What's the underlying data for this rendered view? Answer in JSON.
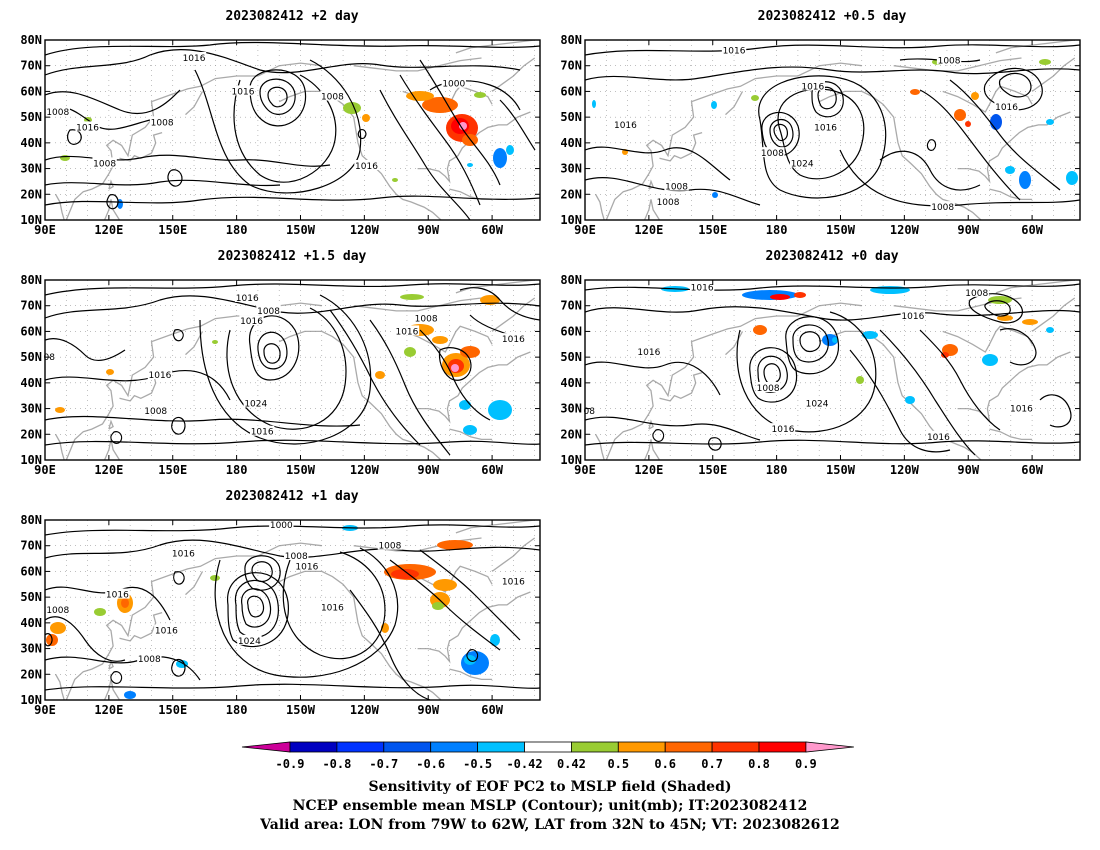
{
  "panels": [
    {
      "title": "2023082412 +2 day"
    },
    {
      "title": "2023082412 +0.5 day"
    },
    {
      "title": "2023082412 +1.5 day"
    },
    {
      "title": "2023082412 +0 day"
    },
    {
      "title": "2023082412 +1 day"
    }
  ],
  "lat_labels": [
    "80N",
    "70N",
    "60N",
    "50N",
    "40N",
    "30N",
    "20N",
    "10N"
  ],
  "lon_labels": [
    "90E",
    "120E",
    "150E",
    "180",
    "150W",
    "120W",
    "90W",
    "60W"
  ],
  "contour_labels": [
    [
      {
        "text": "1016",
        "lon": 160,
        "lat": 73
      },
      {
        "text": "1016",
        "lon": 183,
        "lat": 60
      },
      {
        "text": "1008",
        "lon": 225,
        "lat": 58
      },
      {
        "text": "1000",
        "lon": 282,
        "lat": 63
      },
      {
        "text": "1008",
        "lon": 96,
        "lat": 52
      },
      {
        "text": "1008",
        "lon": 145,
        "lat": 48
      },
      {
        "text": "1016",
        "lon": 110,
        "lat": 46
      },
      {
        "text": "1008",
        "lon": 118,
        "lat": 32
      },
      {
        "text": "1016",
        "lon": 241,
        "lat": 31
      }
    ],
    [
      {
        "text": "1016",
        "lon": 160,
        "lat": 76
      },
      {
        "text": "1008",
        "lon": 261,
        "lat": 72
      },
      {
        "text": "1016",
        "lon": 197,
        "lat": 62
      },
      {
        "text": "1016",
        "lon": 109,
        "lat": 47
      },
      {
        "text": "1016",
        "lon": 203,
        "lat": 46
      },
      {
        "text": "1008",
        "lon": 178,
        "lat": 36
      },
      {
        "text": "1024",
        "lon": 192,
        "lat": 32
      },
      {
        "text": "1016",
        "lon": 288,
        "lat": 54
      },
      {
        "text": "1008",
        "lon": 133,
        "lat": 23
      },
      {
        "text": "1008",
        "lon": 129,
        "lat": 17
      },
      {
        "text": "1008",
        "lon": 258,
        "lat": 15
      }
    ],
    [
      {
        "text": "1016",
        "lon": 185,
        "lat": 73
      },
      {
        "text": "1008",
        "lon": 195,
        "lat": 68
      },
      {
        "text": "1016",
        "lon": 187,
        "lat": 64
      },
      {
        "text": "1008",
        "lon": 269,
        "lat": 65
      },
      {
        "text": "1016",
        "lon": 260,
        "lat": 60
      },
      {
        "text": "1016",
        "lon": 310,
        "lat": 57
      },
      {
        "text": "1016",
        "lon": 144,
        "lat": 43
      },
      {
        "text": "1024",
        "lon": 189,
        "lat": 32
      },
      {
        "text": "1008",
        "lon": 142,
        "lat": 29
      },
      {
        "text": "1016",
        "lon": 192,
        "lat": 21
      },
      {
        "text": "08",
        "lon": 92,
        "lat": 50
      }
    ],
    [
      {
        "text": "1016",
        "lon": 145,
        "lat": 77
      },
      {
        "text": "1008",
        "lon": 274,
        "lat": 75
      },
      {
        "text": "1016",
        "lon": 244,
        "lat": 66
      },
      {
        "text": "1016",
        "lon": 120,
        "lat": 52
      },
      {
        "text": "1008",
        "lon": 176,
        "lat": 38
      },
      {
        "text": "1024",
        "lon": 199,
        "lat": 32
      },
      {
        "text": "1016",
        "lon": 256,
        "lat": 19
      },
      {
        "text": "1016",
        "lon": 183,
        "lat": 22
      },
      {
        "text": "1016",
        "lon": 295,
        "lat": 30
      },
      {
        "text": "08",
        "lon": 92,
        "lat": 29
      }
    ],
    [
      {
        "text": "1000",
        "lon": 201,
        "lat": 78
      },
      {
        "text": "1008",
        "lon": 252,
        "lat": 70
      },
      {
        "text": "1016",
        "lon": 155,
        "lat": 67
      },
      {
        "text": "1008",
        "lon": 208,
        "lat": 66
      },
      {
        "text": "1016",
        "lon": 213,
        "lat": 62
      },
      {
        "text": "1016",
        "lon": 124,
        "lat": 51
      },
      {
        "text": "1016",
        "lon": 225,
        "lat": 46
      },
      {
        "text": "1016",
        "lon": 310,
        "lat": 56
      },
      {
        "text": "1008",
        "lon": 96,
        "lat": 45
      },
      {
        "text": "1016",
        "lon": 147,
        "lat": 37
      },
      {
        "text": "1024",
        "lon": 186,
        "lat": 33
      },
      {
        "text": "1008",
        "lon": 139,
        "lat": 26
      }
    ]
  ],
  "colorbar": {
    "labels": [
      "-0.9",
      "-0.8",
      "-0.7",
      "-0.6",
      "-0.5",
      "-0.42",
      "0.42",
      "0.5",
      "0.6",
      "0.7",
      "0.8",
      "0.9"
    ],
    "colors": [
      "#0000c0",
      "#0033ff",
      "#0055ee",
      "#0080ff",
      "#00c0ff",
      "#ffffff",
      "#99cc33",
      "#ff9900",
      "#ff6600",
      "#ff3300",
      "#ff0000"
    ],
    "low_end_color": "#cc0099",
    "high_end_color": "#ff99cc"
  },
  "captions": [
    "Sensitivity of EOF PC2 to MSLP field (Shaded)",
    "NCEP ensemble mean MSLP (Contour); unit(mb); IT:2023082412",
    "Valid area: LON from 79W to 62W, LAT from 32N to 45N; VT: 2023082612"
  ],
  "style": {
    "contour_color": "#000000",
    "coast_color": "#aaaaaa",
    "grid_color": "#999999"
  }
}
